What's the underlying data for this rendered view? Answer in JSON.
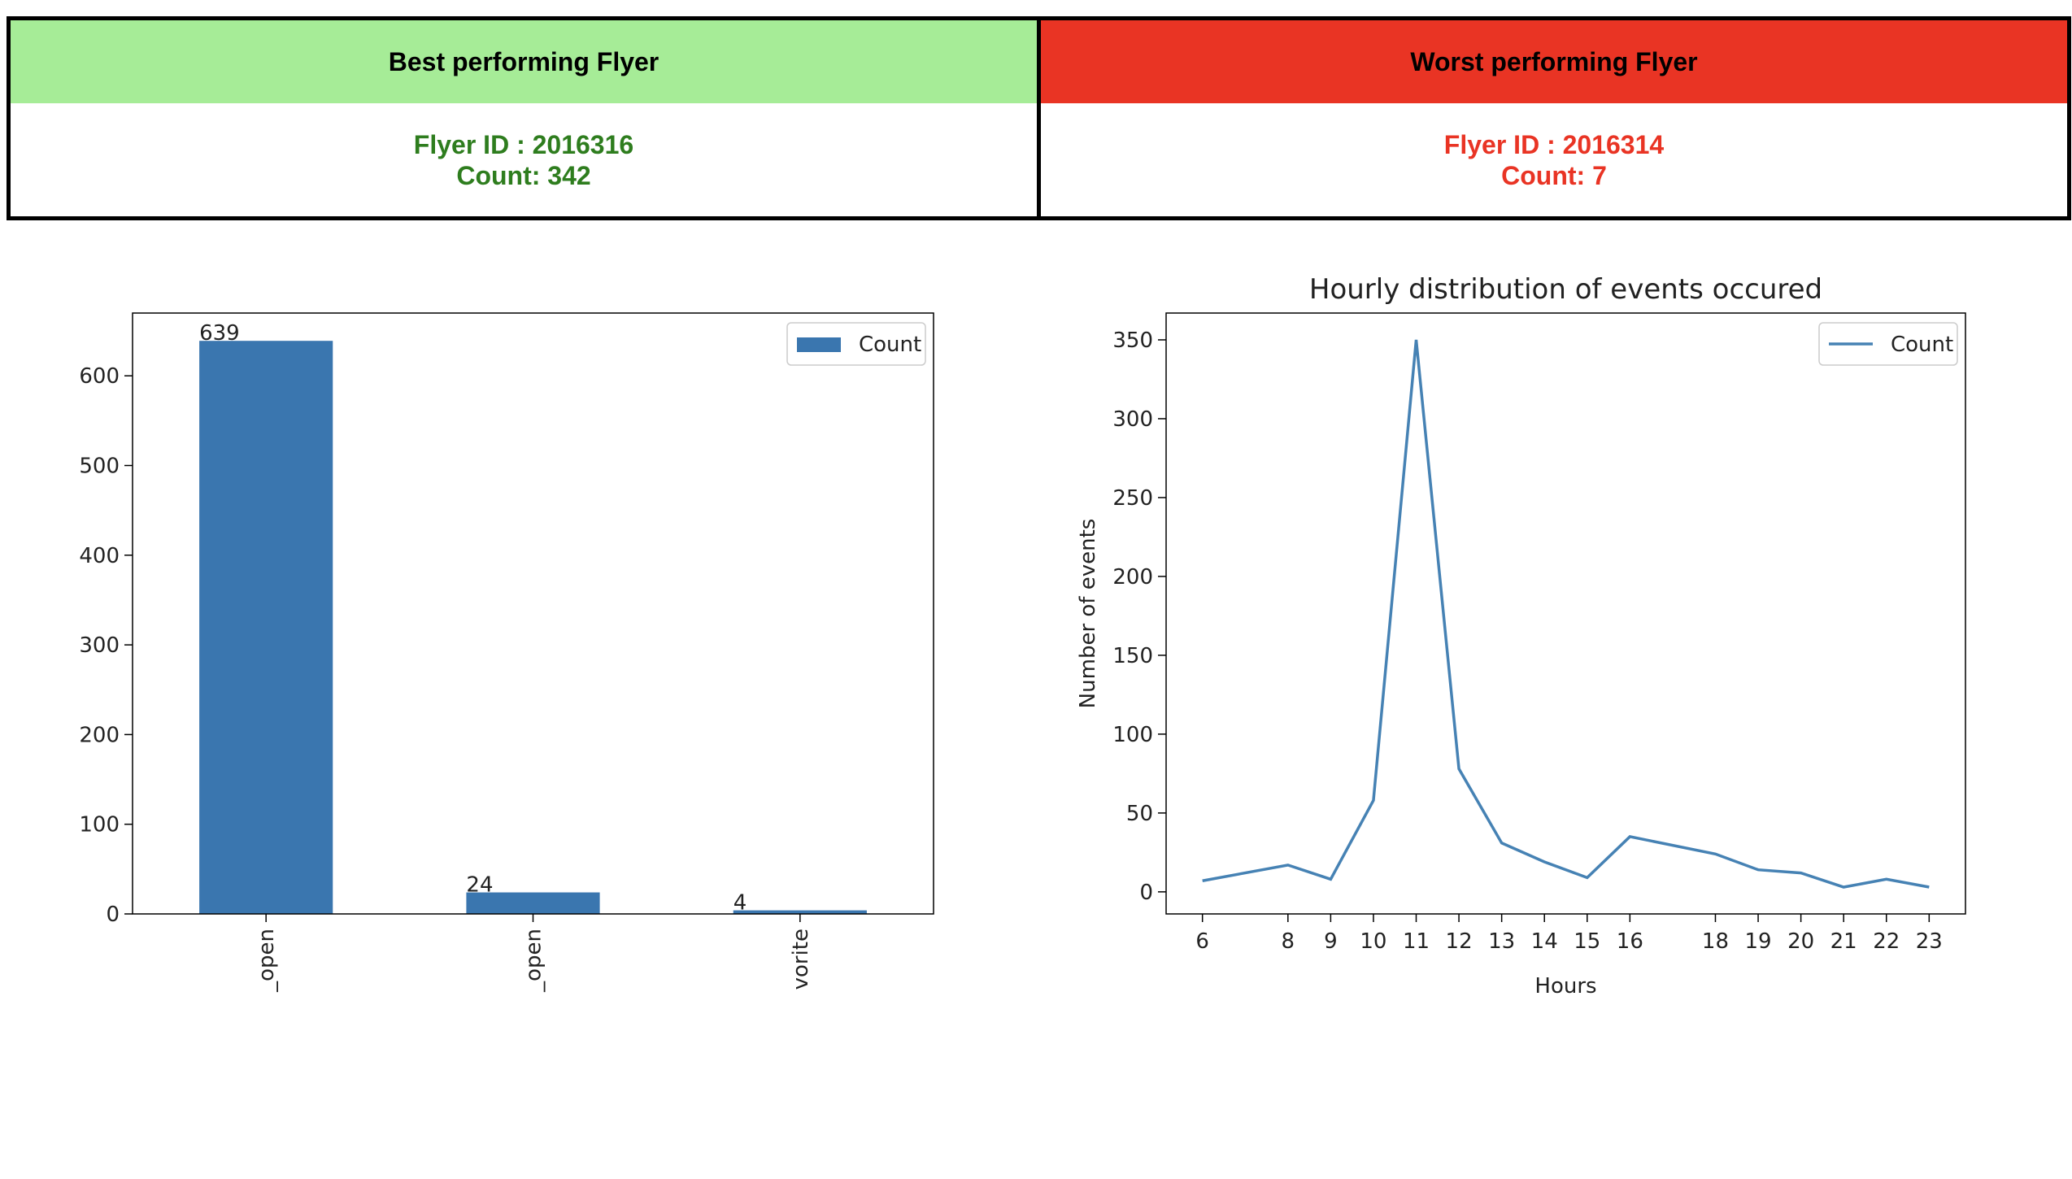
{
  "summary": {
    "best": {
      "header": "Best performing Flyer",
      "flyer": "Flyer ID : 2016316",
      "count": "Count: 342"
    },
    "worst": {
      "header": "Worst performing Flyer",
      "flyer": "Flyer ID : 2016314",
      "count": "Count: 7"
    }
  },
  "chart_data": [
    {
      "type": "bar",
      "categories": [
        "_open",
        "_open",
        "vorite"
      ],
      "series": [
        {
          "name": "Count",
          "color": "#3a76af",
          "values": [
            639,
            24,
            4
          ]
        }
      ],
      "ylim": [
        0,
        670
      ],
      "yticks": [
        0,
        100,
        200,
        300,
        400,
        500,
        600
      ],
      "legend": "upper right",
      "show_values": true
    },
    {
      "type": "line",
      "title": "Hourly distribution of events occured",
      "xlabel": "Hours",
      "ylabel": "Number of events",
      "x": [
        6,
        8,
        9,
        10,
        11,
        12,
        13,
        14,
        15,
        16,
        18,
        19,
        20,
        21,
        22,
        23
      ],
      "series": [
        {
          "name": "Count",
          "color": "#4682b4",
          "values": [
            7,
            17,
            8,
            58,
            350,
            78,
            31,
            19,
            9,
            35,
            24,
            14,
            12,
            3,
            8,
            3
          ]
        }
      ],
      "xlim": [
        5.15,
        23.85
      ],
      "ylim": [
        -14,
        367
      ],
      "xticks": [
        6,
        8,
        9,
        10,
        11,
        12,
        13,
        14,
        15,
        16,
        18,
        19,
        20,
        21,
        22,
        23
      ],
      "yticks": [
        0,
        50,
        100,
        150,
        200,
        250,
        300,
        350
      ],
      "legend": "upper right"
    }
  ]
}
